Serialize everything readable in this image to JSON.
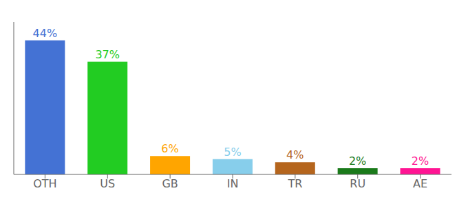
{
  "chart_data": {
    "type": "bar",
    "categories": [
      "OTH",
      "US",
      "GB",
      "IN",
      "TR",
      "RU",
      "AE"
    ],
    "values": [
      44,
      37,
      6,
      5,
      4,
      2,
      2
    ],
    "value_labels": [
      "44%",
      "37%",
      "6%",
      "5%",
      "4%",
      "2%",
      "2%"
    ],
    "colors": [
      "#4472d4",
      "#22cc22",
      "#ffa500",
      "#87ceeb",
      "#b5651d",
      "#1a7a1a",
      "#ff1493"
    ],
    "ylim": [
      0,
      50
    ],
    "data_labels": true,
    "tick_labels": "x",
    "grid": false
  }
}
